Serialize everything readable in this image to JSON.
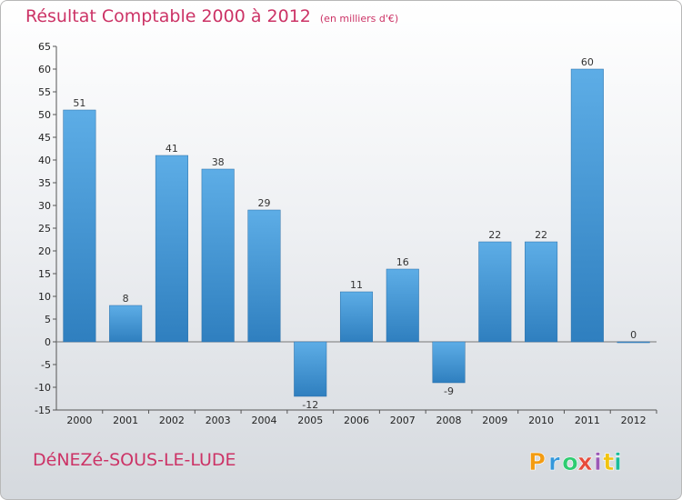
{
  "header": {
    "title": "Résultat Comptable 2000 à 2012",
    "subtitle": "(en milliers d'€)"
  },
  "footer": {
    "commune": "DéNEZé-SOUS-LE-LUDE"
  },
  "logo": {
    "letters": [
      "P",
      "r",
      "o",
      "x",
      "i",
      "t",
      "i"
    ],
    "colors": [
      "#f39c12",
      "#3498db",
      "#2ecc71",
      "#e74c3c",
      "#9b59b6",
      "#f1c40f",
      "#1abc9c"
    ]
  },
  "colors": {
    "bar_top": "#5dade6",
    "bar_bottom": "#2f7fbf",
    "title": "#cc3366"
  },
  "chart_data": {
    "type": "bar",
    "title": "Résultat Comptable 2000 à 2012",
    "xlabel": "",
    "ylabel": "",
    "categories": [
      "2000",
      "2001",
      "2002",
      "2003",
      "2004",
      "2005",
      "2006",
      "2007",
      "2008",
      "2009",
      "2010",
      "2011",
      "2012"
    ],
    "values": [
      51,
      8,
      41,
      38,
      29,
      -12,
      11,
      16,
      -9,
      22,
      22,
      60,
      0
    ],
    "ylim": [
      -15,
      65
    ],
    "yticks": [
      -15,
      -10,
      -5,
      0,
      5,
      10,
      15,
      20,
      25,
      30,
      35,
      40,
      45,
      50,
      55,
      60,
      65
    ],
    "grid": false,
    "legend": "none"
  }
}
